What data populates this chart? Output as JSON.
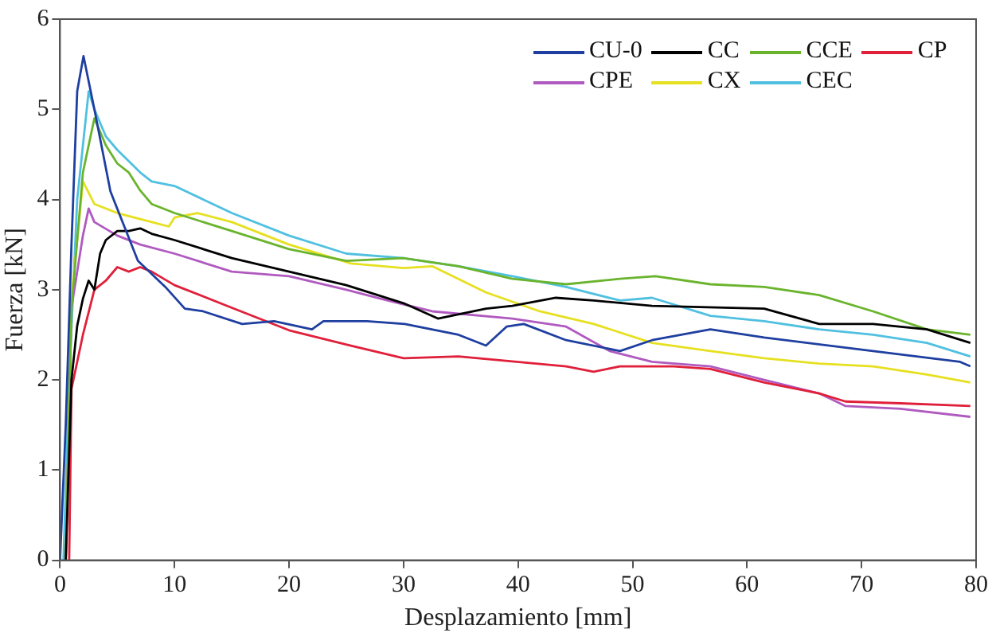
{
  "chart_data": {
    "type": "line",
    "xlabel": "Desplazamiento [mm]",
    "ylabel": "Fuerza [kN]",
    "xlim": [
      0,
      80
    ],
    "ylim": [
      0,
      6
    ],
    "xticks": [
      0,
      10,
      20,
      30,
      40,
      50,
      60,
      70,
      80
    ],
    "yticks": [
      0,
      1,
      2,
      3,
      4,
      5,
      6
    ],
    "grid": false,
    "legend": "top right",
    "marker": "none",
    "line_style": "solid",
    "series": [
      {
        "name": "CU-0",
        "color": "#1f3fa0",
        "x": [
          0,
          0.5,
          1,
          1.5,
          2.05,
          3,
          4.4,
          6.8,
          9.2,
          10.9,
          12.5,
          15.9,
          18.7,
          22,
          23,
          26.8,
          30.1,
          34.8,
          37.2,
          39,
          40.5,
          44.2,
          48.9,
          51.7,
          56.8,
          61.5,
          71,
          78.6,
          79.5
        ],
        "values": [
          0,
          1.5,
          3.5,
          5.2,
          5.59,
          5.0,
          4.09,
          3.32,
          3.03,
          2.79,
          2.76,
          2.62,
          2.65,
          2.56,
          2.65,
          2.65,
          2.62,
          2.5,
          2.38,
          2.59,
          2.62,
          2.44,
          2.32,
          2.44,
          2.56,
          2.47,
          2.32,
          2.2,
          2.15
        ]
      },
      {
        "name": "CC",
        "color": "#000000",
        "x": [
          0.5,
          1,
          1.5,
          2,
          2.5,
          3,
          3.5,
          4,
          5,
          6,
          7,
          8,
          10,
          15,
          20,
          25,
          30,
          33,
          37.2,
          39.5,
          43.3,
          46.6,
          51.7,
          61.5,
          66.3,
          71,
          75.7,
          79.5
        ],
        "values": [
          0,
          2.0,
          2.6,
          2.9,
          3.1,
          3.0,
          3.4,
          3.55,
          3.65,
          3.65,
          3.68,
          3.62,
          3.55,
          3.35,
          3.2,
          3.05,
          2.85,
          2.68,
          2.79,
          2.82,
          2.91,
          2.88,
          2.82,
          2.79,
          2.62,
          2.62,
          2.56,
          2.41
        ]
      },
      {
        "name": "CCE",
        "color": "#6ab42d",
        "x": [
          0.5,
          1,
          2,
          3,
          4,
          5,
          6,
          7,
          8,
          10,
          15,
          20,
          25,
          30,
          34.8,
          39.5,
          44.2,
          48.9,
          52,
          56.8,
          61.5,
          66.3,
          71,
          75.7,
          79.5
        ],
        "values": [
          0,
          2.8,
          4.3,
          4.9,
          4.6,
          4.4,
          4.3,
          4.1,
          3.95,
          3.85,
          3.65,
          3.45,
          3.32,
          3.35,
          3.26,
          3.12,
          3.06,
          3.12,
          3.15,
          3.06,
          3.03,
          2.94,
          2.76,
          2.56,
          2.5
        ]
      },
      {
        "name": "CP",
        "color": "#e0203a",
        "x": [
          0.8,
          1,
          2,
          3,
          4,
          5,
          6,
          7,
          8,
          10,
          15,
          20,
          25.4,
          30,
          34.8,
          44.2,
          46.6,
          48.9,
          53.6,
          56.8,
          61.5,
          66.3,
          68.6,
          73.4,
          79.5
        ],
        "values": [
          0,
          1.9,
          2.5,
          3.0,
          3.1,
          3.25,
          3.2,
          3.25,
          3.2,
          3.05,
          2.8,
          2.55,
          2.38,
          2.24,
          2.26,
          2.15,
          2.09,
          2.15,
          2.15,
          2.12,
          1.97,
          1.85,
          1.76,
          1.74,
          1.71
        ]
      },
      {
        "name": "CPE",
        "color": "#b05ac0",
        "x": [
          0.5,
          1,
          2,
          2.5,
          3,
          5,
          7,
          10,
          15,
          20,
          25,
          28,
          32.5,
          39.5,
          44.2,
          48,
          51.7,
          56.8,
          61.5,
          66.3,
          68.6,
          73.4,
          79.5
        ],
        "values": [
          0,
          2.8,
          3.6,
          3.9,
          3.75,
          3.6,
          3.5,
          3.4,
          3.2,
          3.15,
          3.0,
          2.9,
          2.76,
          2.68,
          2.59,
          2.32,
          2.2,
          2.15,
          2.0,
          1.85,
          1.71,
          1.68,
          1.59
        ]
      },
      {
        "name": "CX",
        "color": "#e6e020",
        "x": [
          0.5,
          1,
          2,
          3,
          5,
          8,
          9.5,
          10,
          12,
          15,
          20,
          25.4,
          30,
          32.5,
          37.2,
          41.9,
          46.6,
          51.7,
          56.8,
          61.5,
          66.3,
          71,
          75.7,
          79.5
        ],
        "values": [
          0,
          2.9,
          4.2,
          3.95,
          3.85,
          3.75,
          3.7,
          3.8,
          3.85,
          3.75,
          3.5,
          3.29,
          3.24,
          3.26,
          2.97,
          2.76,
          2.62,
          2.41,
          2.32,
          2.24,
          2.18,
          2.15,
          2.06,
          1.97
        ]
      },
      {
        "name": "CEC",
        "color": "#50c0e0",
        "x": [
          0.3,
          0.8,
          1.5,
          2,
          2.5,
          3,
          4,
          5,
          7,
          8,
          10,
          15,
          20,
          25,
          30,
          34.8,
          39.5,
          44.2,
          48.9,
          51.7,
          56.8,
          61.5,
          66.3,
          71,
          75.7,
          79.5
        ],
        "values": [
          0,
          2.0,
          4.0,
          4.6,
          5.2,
          5.0,
          4.7,
          4.55,
          4.3,
          4.2,
          4.15,
          3.85,
          3.6,
          3.4,
          3.35,
          3.26,
          3.15,
          3.03,
          2.88,
          2.91,
          2.71,
          2.65,
          2.56,
          2.5,
          2.41,
          2.26
        ]
      }
    ]
  }
}
